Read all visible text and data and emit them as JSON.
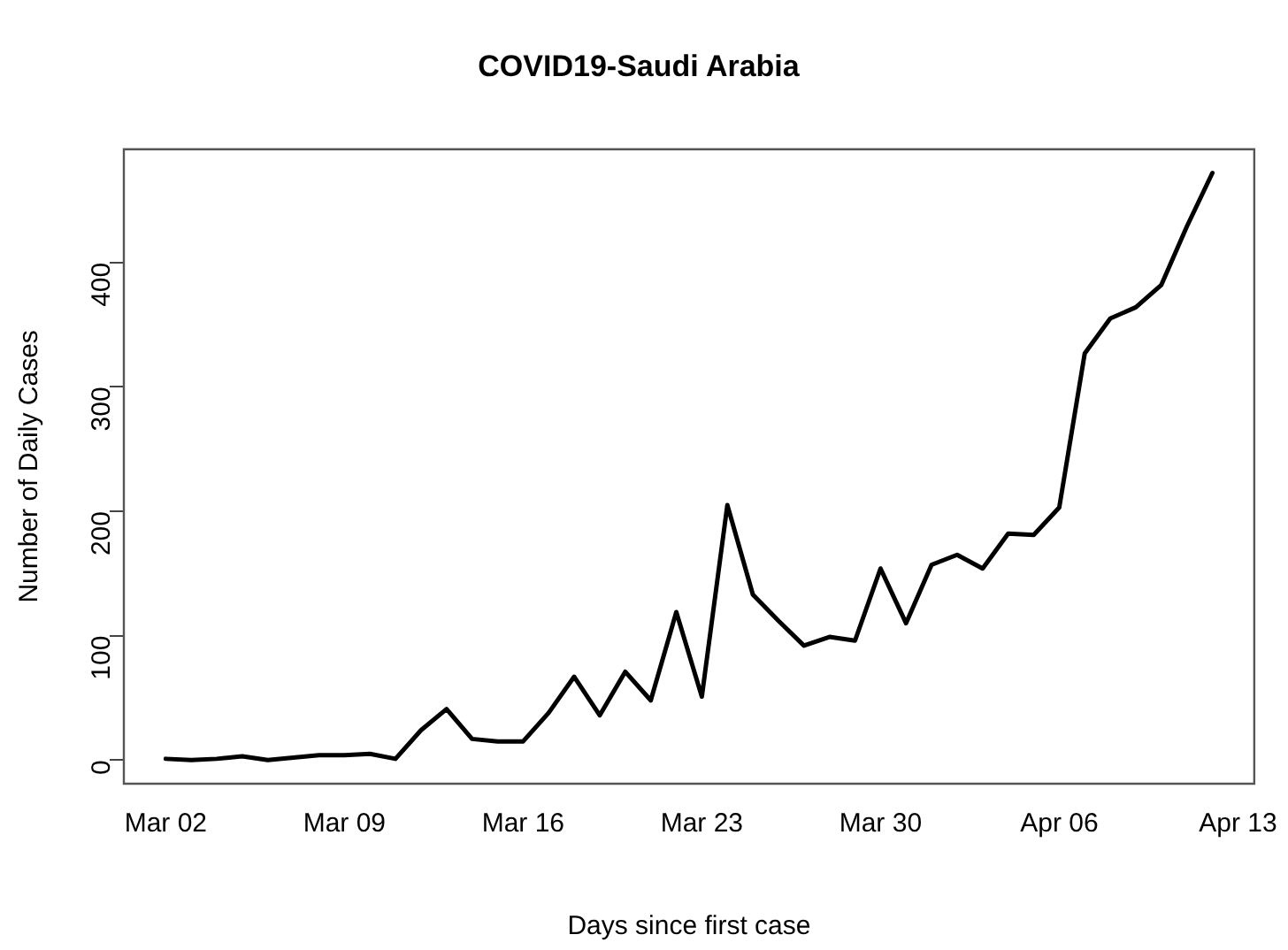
{
  "chart_data": {
    "type": "line",
    "title": "COVID19-Saudi Arabia",
    "xlabel": "Days since first case",
    "ylabel": "Number of Daily Cases",
    "x": [
      "--03-02",
      "--03-03",
      "--03-04",
      "--03-05",
      "--03-06",
      "--03-07",
      "--03-08",
      "--03-09",
      "--03-10",
      "--03-11",
      "--03-12",
      "--03-13",
      "--03-14",
      "--03-15",
      "--03-16",
      "--03-17",
      "--03-18",
      "--03-19",
      "--03-20",
      "--03-21",
      "--03-22",
      "--03-23",
      "--03-24",
      "--03-25",
      "--03-26",
      "--03-27",
      "--03-28",
      "--03-29",
      "--03-30",
      "--03-31",
      "--04-01",
      "--04-02",
      "--04-03",
      "--04-04",
      "--04-05",
      "--04-06",
      "--04-07",
      "--04-08",
      "--04-09",
      "--04-10",
      "--04-11",
      "--04-12"
    ],
    "series": [
      {
        "color": "#000000",
        "values": [
          1,
          0,
          1,
          3,
          0,
          2,
          4,
          4,
          5,
          1,
          24,
          41,
          17,
          15,
          15,
          38,
          67,
          36,
          71,
          48,
          119,
          51,
          205,
          133,
          112,
          92,
          99,
          96,
          154,
          110,
          157,
          165,
          154,
          182,
          181,
          203,
          327,
          355,
          364,
          382,
          429,
          472
        ]
      }
    ],
    "xlim": [
      "--02-29T08:38",
      "--04-13T15:22"
    ],
    "xticks": [
      {
        "value": "--03-02",
        "label": "Mar 02"
      },
      {
        "value": "--03-09",
        "label": "Mar 09"
      },
      {
        "value": "--03-16",
        "label": "Mar 16"
      },
      {
        "value": "--03-23",
        "label": "Mar 23"
      },
      {
        "value": "--03-30",
        "label": "Mar 30"
      },
      {
        "value": "--04-06",
        "label": "Apr 06"
      },
      {
        "value": "--04-13",
        "label": "Apr 13"
      }
    ],
    "ylim": [
      -19,
      491
    ],
    "yticks": [
      0,
      100,
      200,
      300,
      400
    ],
    "grid": false,
    "legend": false,
    "marker": "none",
    "line_style": "solid"
  }
}
